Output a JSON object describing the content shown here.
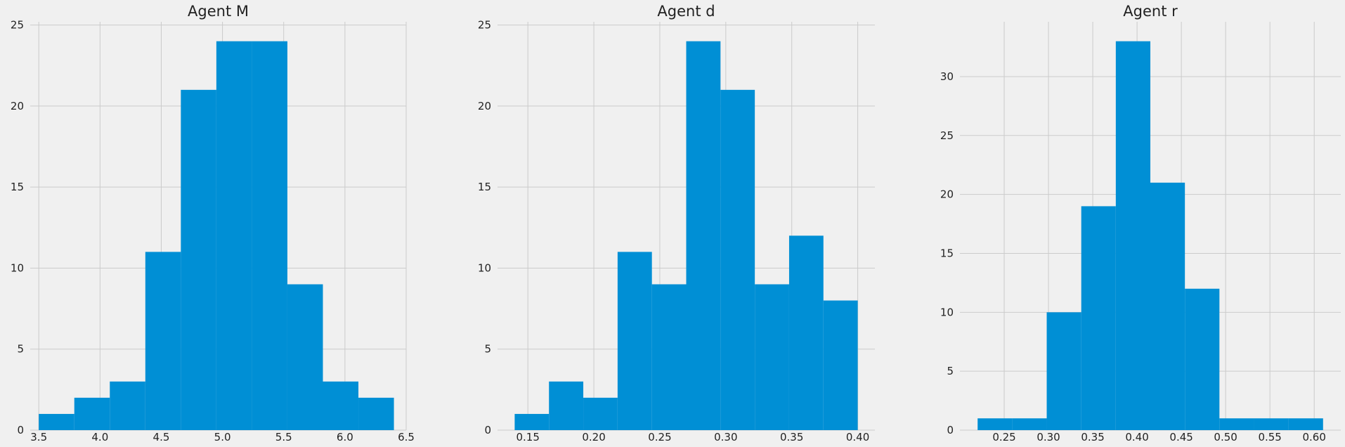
{
  "figure": {
    "background": "#f0f0f0",
    "grid_color": "#cbcbcb",
    "bar_color": "#008fd5"
  },
  "chart_data": [
    {
      "type": "bar",
      "title": "Agent M",
      "xlabel": "",
      "ylabel": "",
      "bin_edges": [
        3.5,
        3.79,
        4.08,
        4.37,
        4.66,
        4.95,
        5.24,
        5.53,
        5.82,
        6.11,
        6.4
      ],
      "values": [
        1,
        2,
        3,
        11,
        21,
        24,
        24,
        9,
        3,
        2
      ],
      "xlim": [
        3.43,
        6.5
      ],
      "ylim": [
        0,
        25.2
      ],
      "xticks": [
        3.5,
        4.0,
        4.5,
        5.0,
        5.5,
        6.0,
        6.5
      ],
      "xtick_labels": [
        "3.5",
        "4.0",
        "4.5",
        "5.0",
        "5.5",
        "6.0",
        "6.5"
      ],
      "yticks": [
        0,
        5,
        10,
        15,
        20,
        25
      ],
      "ytick_labels": [
        "0",
        "5",
        "10",
        "15",
        "20",
        "25"
      ],
      "grid": true
    },
    {
      "type": "bar",
      "title": "Agent d",
      "xlabel": "",
      "ylabel": "",
      "bin_edges": [
        0.14,
        0.166,
        0.192,
        0.218,
        0.244,
        0.27,
        0.296,
        0.322,
        0.348,
        0.374,
        0.4
      ],
      "values": [
        1,
        3,
        2,
        11,
        9,
        24,
        21,
        9,
        12,
        8
      ],
      "xlim": [
        0.127,
        0.413
      ],
      "ylim": [
        0,
        25.2
      ],
      "xticks": [
        0.15,
        0.2,
        0.25,
        0.3,
        0.35,
        0.4
      ],
      "xtick_labels": [
        "0.15",
        "0.20",
        "0.25",
        "0.30",
        "0.35",
        "0.40"
      ],
      "yticks": [
        0,
        5,
        10,
        15,
        20,
        25
      ],
      "ytick_labels": [
        "0",
        "5",
        "10",
        "15",
        "20",
        "25"
      ],
      "grid": true
    },
    {
      "type": "bar",
      "title": "Agent r",
      "xlabel": "",
      "ylabel": "",
      "bin_edges": [
        0.22,
        0.259,
        0.298,
        0.337,
        0.376,
        0.415,
        0.454,
        0.493,
        0.532,
        0.571,
        0.61
      ],
      "values": [
        1,
        1,
        10,
        19,
        33,
        21,
        12,
        1,
        1,
        1
      ],
      "xlim": [
        0.2,
        0.63
      ],
      "ylim": [
        0,
        34.65
      ],
      "xticks": [
        0.25,
        0.3,
        0.35,
        0.4,
        0.45,
        0.5,
        0.55,
        0.6
      ],
      "xtick_labels": [
        "0.25",
        "0.30",
        "0.35",
        "0.40",
        "0.45",
        "0.50",
        "0.55",
        "0.60"
      ],
      "yticks": [
        0,
        5,
        10,
        15,
        20,
        25,
        30
      ],
      "ytick_labels": [
        "0",
        "5",
        "10",
        "15",
        "20",
        "25",
        "30"
      ],
      "grid": true
    }
  ]
}
